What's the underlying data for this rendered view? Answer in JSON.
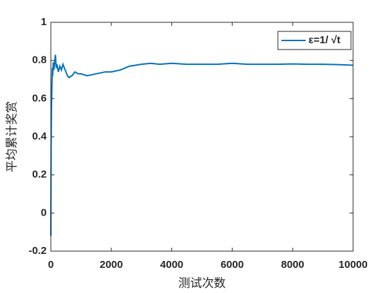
{
  "chart_data": {
    "type": "line",
    "xlabel": "测试次数",
    "ylabel": "平均累计奖赏",
    "x": [
      0,
      5,
      10,
      20,
      30,
      40,
      50,
      60,
      80,
      100,
      120,
      150,
      180,
      200,
      250,
      300,
      350,
      400,
      450,
      500,
      550,
      600,
      700,
      800,
      900,
      1000,
      1200,
      1500,
      1800,
      2000,
      2300,
      2600,
      3000,
      3300,
      3600,
      4000,
      4500,
      5000,
      5500,
      6000,
      6500,
      7000,
      7500,
      8000,
      8500,
      9000,
      9500,
      10000
    ],
    "series": [
      {
        "name": "ε=1/ √t",
        "color": "#0072bd",
        "values": [
          -0.12,
          0.1,
          0.35,
          0.55,
          0.62,
          0.7,
          0.76,
          0.72,
          0.79,
          0.75,
          0.78,
          0.83,
          0.76,
          0.78,
          0.74,
          0.77,
          0.75,
          0.78,
          0.76,
          0.74,
          0.72,
          0.71,
          0.72,
          0.74,
          0.73,
          0.73,
          0.72,
          0.73,
          0.74,
          0.74,
          0.75,
          0.77,
          0.78,
          0.785,
          0.78,
          0.785,
          0.78,
          0.78,
          0.78,
          0.785,
          0.78,
          0.78,
          0.78,
          0.782,
          0.78,
          0.78,
          0.778,
          0.775
        ]
      }
    ],
    "xlim": [
      0,
      10000
    ],
    "xticks": [
      0,
      2000,
      4000,
      6000,
      8000,
      10000
    ],
    "ylim": [
      -0.2,
      1
    ],
    "yticks": [
      -0.2,
      0,
      0.2,
      0.4,
      0.6,
      0.8,
      1
    ],
    "legend": "upper right"
  }
}
